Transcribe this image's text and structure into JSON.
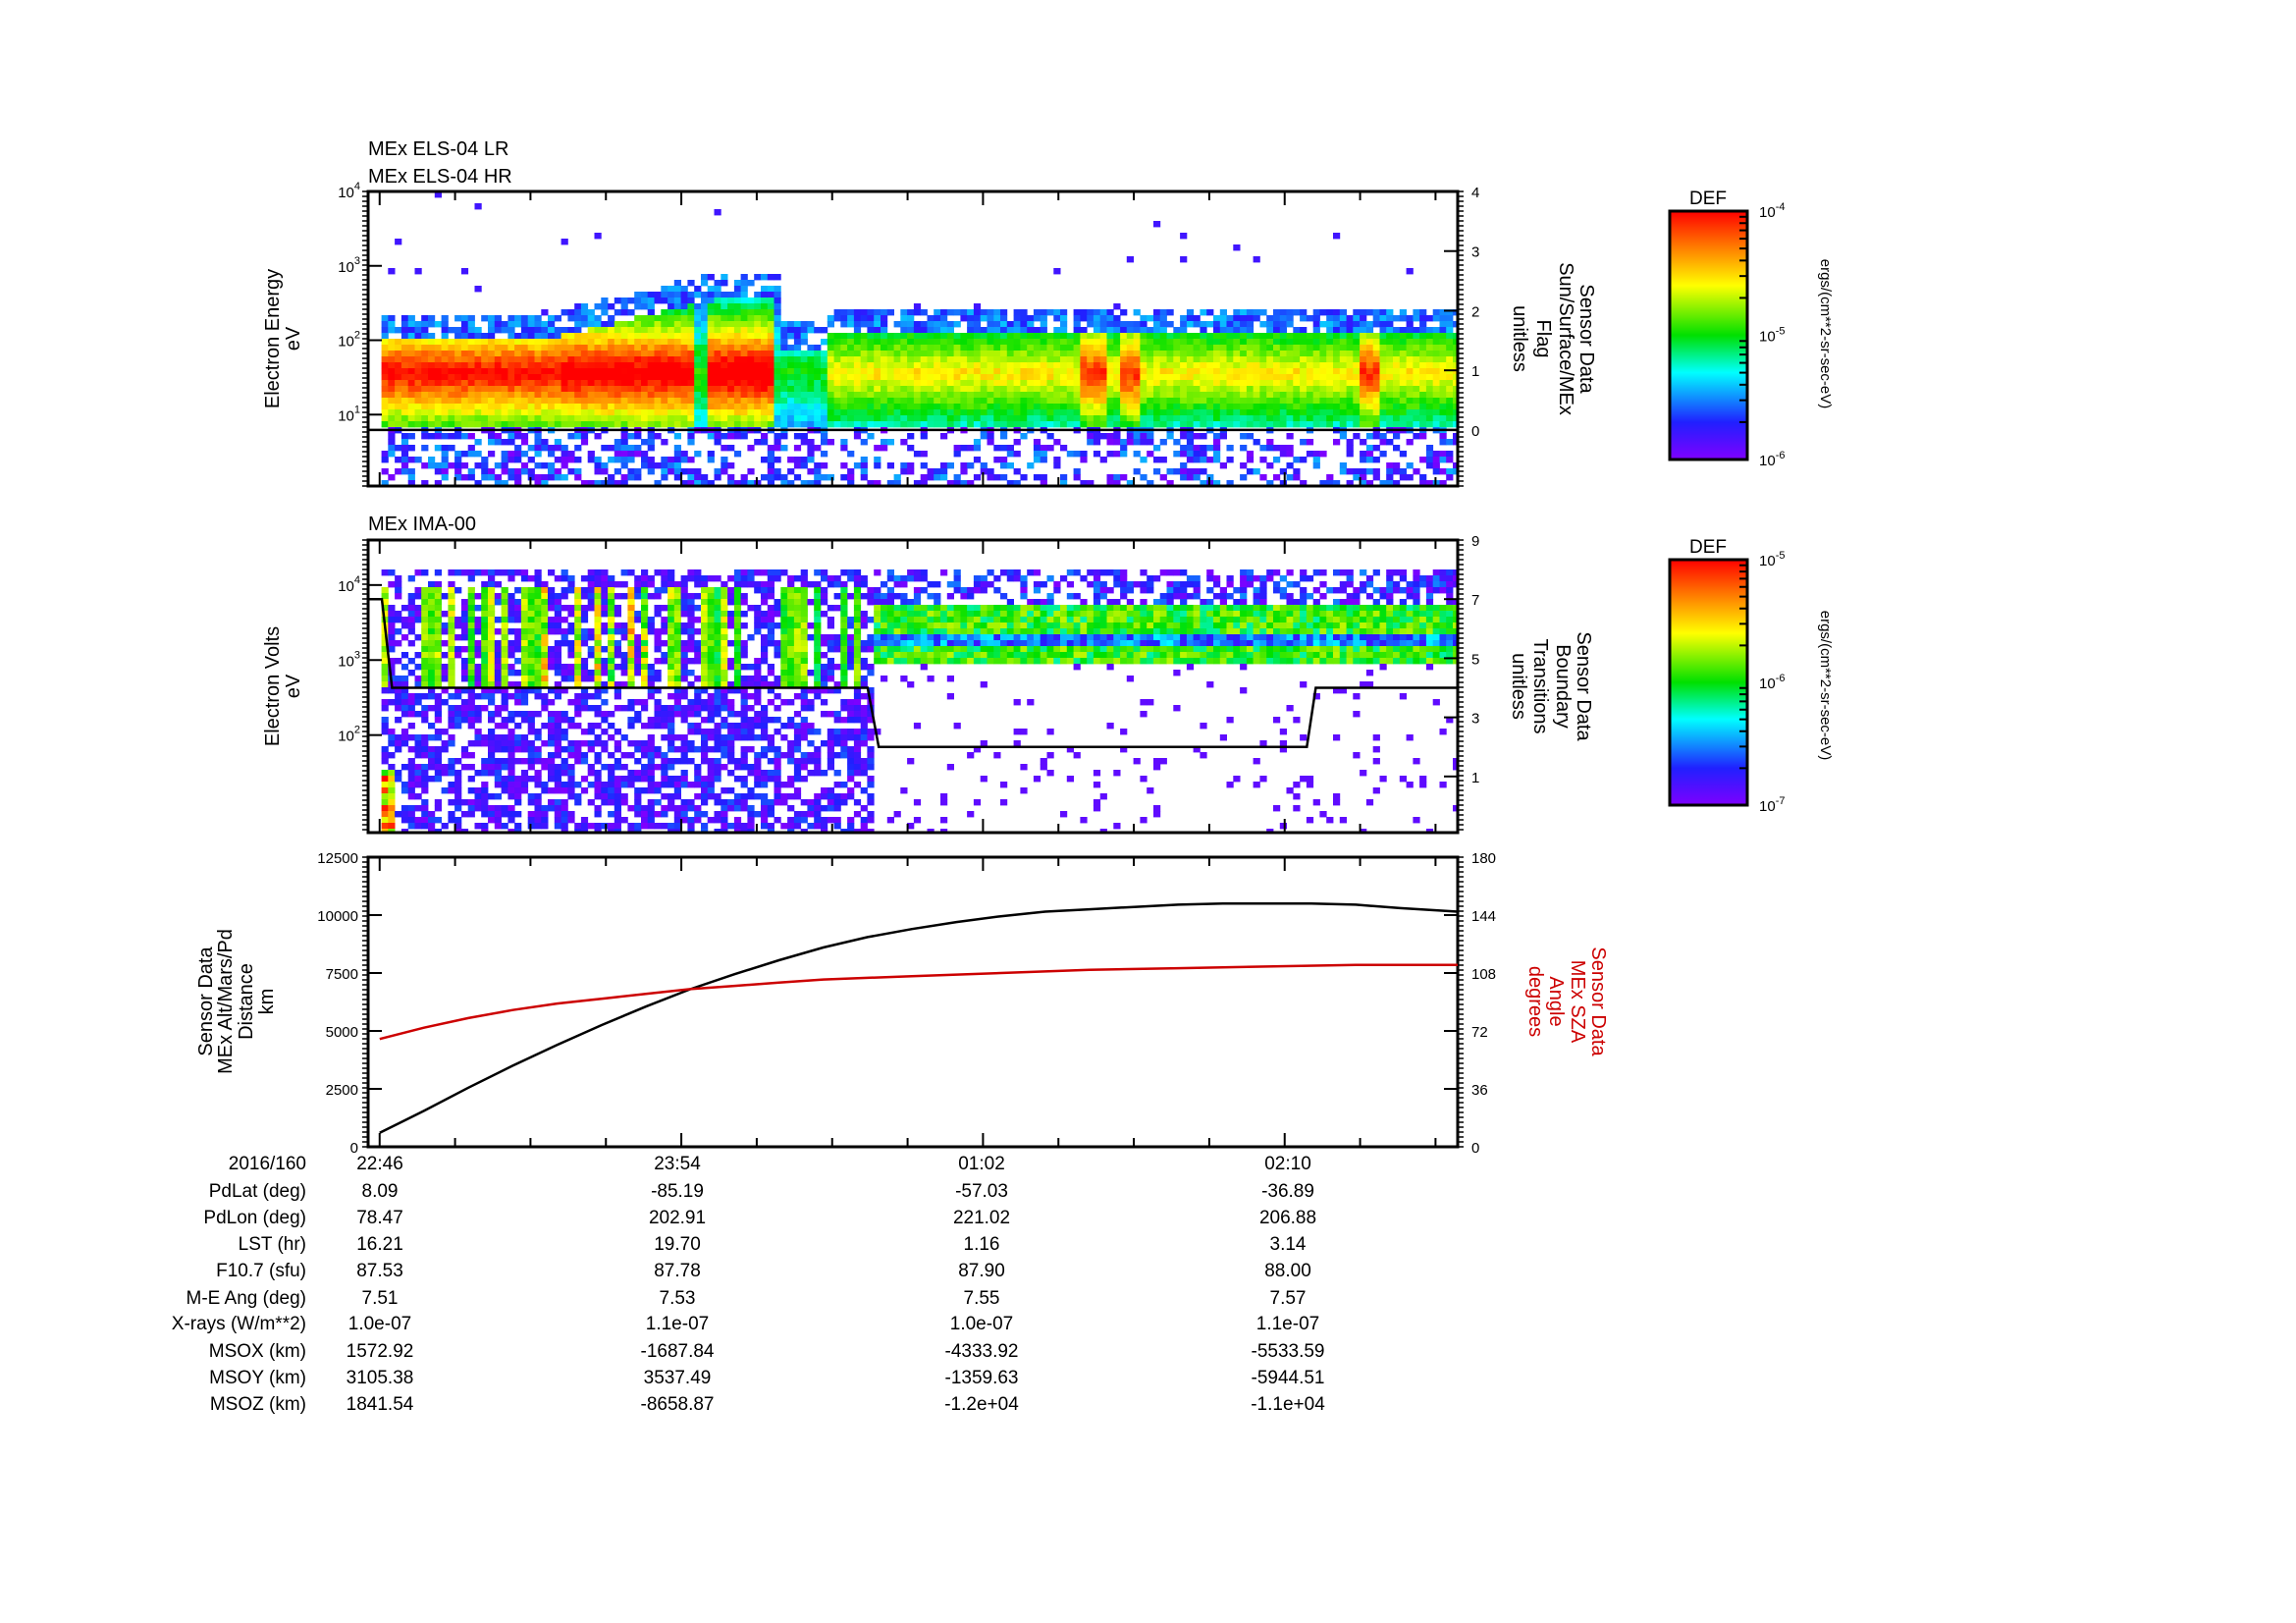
{
  "chart_data": [
    {
      "type": "heatmap",
      "titles": [
        "MEx ELS-04 LR",
        "MEx ELS-04 HR"
      ],
      "ylabel": [
        "Electron Energy",
        "eV"
      ],
      "yscale": "log",
      "ylim_log10": [
        0.04,
        4.0
      ],
      "yticks": [
        {
          "b": "10",
          "e": "4"
        },
        {
          "b": "10",
          "e": "3"
        },
        {
          "b": "10",
          "e": "2"
        },
        {
          "b": "10",
          "e": "1"
        }
      ],
      "y2label": [
        "Sensor Data",
        "Sun/Surface/MEx",
        "Flag",
        "unitless"
      ],
      "y2lim": [
        -0.94,
        4
      ],
      "y2ticks": [
        "4",
        "3",
        "2",
        "1",
        "0"
      ],
      "overlay_series": {
        "name": "Sun/Surface/MEx Flag",
        "x_minutes": [
          -2.6,
          243
        ],
        "y": [
          0,
          0
        ]
      },
      "colorbar": {
        "title": "DEF",
        "ticks": [
          {
            "b": "10",
            "e": "-4"
          },
          {
            "b": "10",
            "e": "-5"
          },
          {
            "b": "10",
            "e": "-6"
          }
        ],
        "units": "ergs/(cm**2-sr-sec-eV)"
      }
    },
    {
      "type": "heatmap",
      "titles": [
        "MEx IMA-00"
      ],
      "ylabel": [
        "Electron Volts",
        "eV"
      ],
      "yscale": "log",
      "ylim_log10": [
        0.7,
        4.6
      ],
      "yticks": [
        {
          "b": "10",
          "e": "4"
        },
        {
          "b": "10",
          "e": "3"
        },
        {
          "b": "10",
          "e": "2"
        }
      ],
      "y2label": [
        "Sensor Data",
        "Boundary",
        "Transitions",
        "unitless"
      ],
      "y2lim": [
        -0.9,
        9
      ],
      "y2ticks": [
        "9",
        "7",
        "5",
        "3",
        "1"
      ],
      "overlay_series": {
        "name": "Boundary Transitions",
        "x_minutes": [
          -2.6,
          0.5,
          2.8,
          110,
          112.5,
          209,
          211,
          243
        ],
        "y": [
          7,
          7,
          4,
          4,
          2,
          2,
          4,
          4
        ]
      },
      "colorbar": {
        "title": "DEF",
        "ticks": [
          {
            "b": "10",
            "e": "-5"
          },
          {
            "b": "10",
            "e": "-6"
          },
          {
            "b": "10",
            "e": "-7"
          }
        ],
        "units": "ergs/(cm**2-sr-sec-eV)"
      }
    },
    {
      "type": "line",
      "ylabel": [
        "Sensor Data",
        "MEx Alt/Mars/Pd",
        "Distance",
        "km"
      ],
      "ylim": [
        0,
        12500
      ],
      "yticks": [
        "12500",
        "10000",
        "7500",
        "5000",
        "2500",
        "0"
      ],
      "y2label": [
        "Sensor Data",
        "MEx SZA",
        "Angle",
        "degrees"
      ],
      "y2lim": [
        0,
        180
      ],
      "y2ticks": [
        "180",
        "144",
        "108",
        "72",
        "36",
        "0"
      ],
      "xlim_minutes_from_22_46": [
        -2.6,
        243
      ],
      "series": [
        {
          "name": "MEx Alt/Mars/Pd Distance (km)",
          "color": "#000000",
          "axis": "left",
          "x": [
            0,
            10,
            20,
            30,
            40,
            50,
            60,
            70,
            80,
            90,
            100,
            110,
            120,
            130,
            140,
            150,
            160,
            170,
            180,
            190,
            200,
            210,
            220,
            230,
            243
          ],
          "y": [
            600,
            1550,
            2550,
            3500,
            4400,
            5250,
            6050,
            6800,
            7450,
            8050,
            8600,
            9050,
            9400,
            9700,
            9950,
            10150,
            10250,
            10350,
            10450,
            10500,
            10500,
            10500,
            10450,
            10300,
            10150
          ]
        },
        {
          "name": "MEx SZA Angle (deg)",
          "color": "#cc0000",
          "axis": "right",
          "x": [
            0,
            10,
            20,
            30,
            40,
            50,
            60,
            70,
            80,
            90,
            100,
            110,
            120,
            140,
            160,
            180,
            200,
            220,
            243
          ],
          "y": [
            67,
            74,
            80,
            85,
            89,
            92,
            95,
            98,
            100,
            102,
            104,
            105,
            106,
            108,
            110,
            111,
            112,
            113,
            113
          ]
        }
      ]
    }
  ],
  "time_axis": {
    "date": "2016/160",
    "ticks": [
      "22:46",
      "23:54",
      "01:02",
      "02:10"
    ]
  },
  "ephemeris": [
    {
      "label": "PdLat (deg)",
      "values": [
        "8.09",
        "-85.19",
        "-57.03",
        "-36.89"
      ]
    },
    {
      "label": "PdLon (deg)",
      "values": [
        "78.47",
        "202.91",
        "221.02",
        "206.88"
      ]
    },
    {
      "label": "LST (hr)",
      "values": [
        "16.21",
        "19.70",
        "1.16",
        "3.14"
      ]
    },
    {
      "label": "F10.7 (sfu)",
      "values": [
        "87.53",
        "87.78",
        "87.90",
        "88.00"
      ]
    },
    {
      "label": "M-E Ang (deg)",
      "values": [
        "7.51",
        "7.53",
        "7.55",
        "7.57"
      ]
    },
    {
      "label": "X-rays (W/m**2)",
      "values": [
        "1.0e-07",
        "1.1e-07",
        "1.0e-07",
        "1.1e-07"
      ]
    },
    {
      "label": "MSOX (km)",
      "values": [
        "1572.92",
        "-1687.84",
        "-4333.92",
        "-5533.59"
      ]
    },
    {
      "label": "MSOY (km)",
      "values": [
        "3105.38",
        "3537.49",
        "-1359.63",
        "-5944.51"
      ]
    },
    {
      "label": "MSOZ (km)",
      "values": [
        "1841.54",
        "-8658.87",
        "-1.2e+04",
        "-1.1e+04"
      ]
    }
  ],
  "colors": {
    "red_axis": "#cc0000",
    "line": "#000000"
  }
}
